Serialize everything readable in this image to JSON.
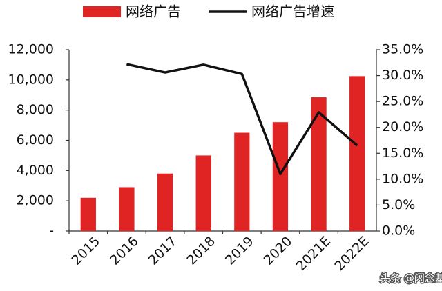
{
  "chart_data": {
    "type": "bar",
    "categories": [
      "2015",
      "2016",
      "2017",
      "2018",
      "2019",
      "2020",
      "2021E",
      "2022E"
    ],
    "series": [
      {
        "name": "网络广告",
        "type": "bar",
        "color": "#e02424",
        "values": [
          2200,
          2900,
          3800,
          5000,
          6500,
          7200,
          8850,
          10250
        ]
      },
      {
        "name": "网络广告增速",
        "type": "line",
        "axis": "y2",
        "color": "#111111",
        "values": [
          null,
          32.2,
          30.6,
          32.1,
          30.3,
          11.0,
          22.9,
          16.5
        ]
      }
    ],
    "ylim": [
      0,
      12000
    ],
    "yticks": [
      {
        "value": 0,
        "label": "-"
      },
      {
        "value": 2000,
        "label": "2,000"
      },
      {
        "value": 4000,
        "label": "4,000"
      },
      {
        "value": 6000,
        "label": "6,000"
      },
      {
        "value": 8000,
        "label": "8,000"
      },
      {
        "value": 10000,
        "label": "10,000"
      },
      {
        "value": 12000,
        "label": "12,000"
      }
    ],
    "y2lim": [
      0,
      35
    ],
    "y2ticks": [
      {
        "value": 0,
        "label": "0.0%"
      },
      {
        "value": 5,
        "label": "5.0%"
      },
      {
        "value": 10,
        "label": "10.0%"
      },
      {
        "value": 15,
        "label": "15.0%"
      },
      {
        "value": 20,
        "label": "20.0%"
      },
      {
        "value": 25,
        "label": "25.0%"
      },
      {
        "value": 30,
        "label": "30.0%"
      },
      {
        "value": 35,
        "label": "35.0%"
      }
    ],
    "legend": "top",
    "watermark": "头条 @闪念基因"
  }
}
